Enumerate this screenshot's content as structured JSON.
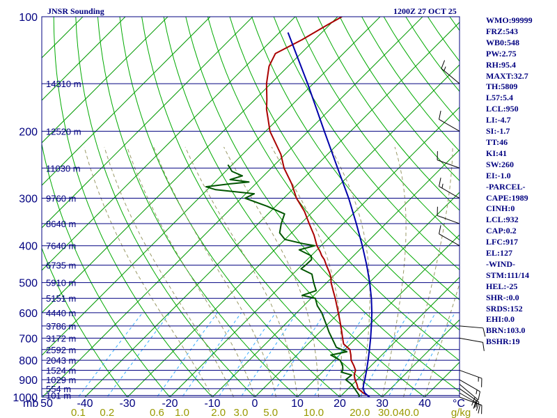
{
  "header": {
    "station": "JNSR Sounding",
    "time": "1200Z 27 OCT 25"
  },
  "indices": [
    "WMO:99999",
    "FRZ:543",
    "WB0:548",
    "PW:2.75",
    "RH:95.4",
    "MAXT:32.7",
    "TH:5809",
    "L57:5.4",
    "LCL:950",
    "LI:-4.7",
    "SI:-1.7",
    "TT:46",
    "KI:41",
    "SW:260",
    "EI:-1.0",
    "-PARCEL-",
    "CAPE:1989",
    "CINH:0",
    "LCL:932",
    "CAP:0.2",
    "LFC:917",
    "EL:127",
    "-WIND-",
    "STM:111/14",
    "HEL:-25",
    "SHR-:0.0",
    "SRDS:152",
    "EHI:0.0",
    "BRN:103.0",
    "BSHR:19"
  ],
  "colors": {
    "frame": "#000080",
    "isobar": "#000080",
    "isotherm": "#009900",
    "dry_adiabat": "#00aa00",
    "moist_adiabat": "#999966",
    "mixing_ratio": "#33aaff",
    "temperature": "#aa0000",
    "dewpoint": "#005500",
    "parcel": "#0000aa",
    "wind_barb": "#000000",
    "mixing_label": "#999900"
  },
  "chart_data": {
    "type": "line",
    "title": "JNSR Sounding",
    "subtitle": "1200Z 27 OCT 25",
    "xlabel": "°C",
    "ylabel": "mb",
    "y_scale": "log-pressure",
    "ylim": [
      1000,
      100
    ],
    "xlim": [
      -50,
      50
    ],
    "skew": "isotherms slanted 45°",
    "pressure_ticks": [
      1000,
      900,
      800,
      700,
      600,
      500,
      400,
      300,
      200,
      100
    ],
    "temperature_ticks": [
      -50,
      -40,
      -30,
      -20,
      -10,
      0,
      10,
      20,
      30,
      40
    ],
    "mixing_ratio_ticks": [
      "0.1",
      "0.2",
      "0.6",
      "1.0",
      "2.0",
      "3.0",
      "5.0",
      "10.0",
      "20.0",
      "30.0",
      "40.0"
    ],
    "mixing_ratio_unit": "g/kg",
    "height_labels": [
      {
        "p": 990,
        "label": "101 m"
      },
      {
        "p": 950,
        "label": "554 m"
      },
      {
        "p": 900,
        "label": "1029 m"
      },
      {
        "p": 850,
        "label": "1524 m"
      },
      {
        "p": 800,
        "label": "2043 m"
      },
      {
        "p": 750,
        "label": "2592 m"
      },
      {
        "p": 700,
        "label": "3172 m"
      },
      {
        "p": 650,
        "label": "3786 m"
      },
      {
        "p": 600,
        "label": "4440 m"
      },
      {
        "p": 550,
        "label": "5151 m"
      },
      {
        "p": 500,
        "label": "5910 m"
      },
      {
        "p": 450,
        "label": "6735 m"
      },
      {
        "p": 400,
        "label": "7640 m"
      },
      {
        "p": 350,
        "label": "8640 m"
      },
      {
        "p": 300,
        "label": "9760 m"
      },
      {
        "p": 250,
        "label": "11030 m"
      },
      {
        "p": 200,
        "label": "12520 m"
      },
      {
        "p": 150,
        "label": "14310 m"
      }
    ],
    "series": [
      {
        "name": "Temperature",
        "points": [
          [
            1000,
            27.0
          ],
          [
            990,
            26.2
          ],
          [
            975,
            24.5
          ],
          [
            950,
            22.3
          ],
          [
            925,
            21.0
          ],
          [
            900,
            19.5
          ],
          [
            875,
            18.2
          ],
          [
            850,
            17.4
          ],
          [
            825,
            15.8
          ],
          [
            800,
            14.0
          ],
          [
            775,
            12.7
          ],
          [
            750,
            11.2
          ],
          [
            725,
            8.4
          ],
          [
            700,
            6.8
          ],
          [
            675,
            5.2
          ],
          [
            650,
            3.5
          ],
          [
            625,
            1.7
          ],
          [
            600,
            -0.2
          ],
          [
            575,
            -2.2
          ],
          [
            550,
            -4.3
          ],
          [
            525,
            -6.6
          ],
          [
            500,
            -9.0
          ],
          [
            485,
            -10.2
          ],
          [
            470,
            -11.8
          ],
          [
            450,
            -14.2
          ],
          [
            435,
            -16.0
          ],
          [
            425,
            -17.5
          ],
          [
            415,
            -18.8
          ],
          [
            400,
            -21.0
          ],
          [
            375,
            -24.2
          ],
          [
            350,
            -28.0
          ],
          [
            325,
            -32.0
          ],
          [
            300,
            -37.0
          ],
          [
            275,
            -41.5
          ],
          [
            250,
            -47.0
          ],
          [
            230,
            -51.0
          ],
          [
            200,
            -59.0
          ],
          [
            185,
            -62.5
          ],
          [
            175,
            -65.0
          ],
          [
            165,
            -67.2
          ],
          [
            150,
            -71.0
          ],
          [
            135,
            -74.5
          ],
          [
            125,
            -76.0
          ],
          [
            115,
            -73.0
          ],
          [
            105,
            -70.5
          ],
          [
            100,
            -69.0
          ]
        ]
      },
      {
        "name": "Dewpoint",
        "points": [
          [
            1000,
            24.5
          ],
          [
            990,
            24.2
          ],
          [
            950,
            21.5
          ],
          [
            925,
            19.7
          ],
          [
            900,
            17.3
          ],
          [
            875,
            17.6
          ],
          [
            860,
            14.5
          ],
          [
            850,
            14.4
          ],
          [
            825,
            13.2
          ],
          [
            800,
            11.4
          ],
          [
            775,
            8.0
          ],
          [
            760,
            11.0
          ],
          [
            740,
            7.5
          ],
          [
            700,
            4.3
          ],
          [
            675,
            2.2
          ],
          [
            650,
            0.2
          ],
          [
            600,
            -4.1
          ],
          [
            575,
            -6.8
          ],
          [
            550,
            -9.0
          ],
          [
            540,
            -12.8
          ],
          [
            525,
            -10.6
          ],
          [
            500,
            -13.1
          ],
          [
            475,
            -15.5
          ],
          [
            460,
            -19.3
          ],
          [
            450,
            -19.1
          ],
          [
            435,
            -19.0
          ],
          [
            425,
            -20.0
          ],
          [
            410,
            -24.2
          ],
          [
            400,
            -21.5
          ],
          [
            395,
            -24.8
          ],
          [
            385,
            -30.0
          ],
          [
            370,
            -32.8
          ],
          [
            350,
            -34.6
          ],
          [
            330,
            -36.1
          ],
          [
            315,
            -42.0
          ],
          [
            300,
            -49.1
          ],
          [
            292,
            -48.0
          ],
          [
            285,
            -58.0
          ],
          [
            280,
            -61.0
          ],
          [
            275,
            -56.0
          ],
          [
            272,
            -52.0
          ],
          [
            268,
            -57.0
          ],
          [
            262,
            -55.0
          ],
          [
            255,
            -58.5
          ],
          [
            245,
            -61.0
          ]
        ]
      },
      {
        "name": "Parcel",
        "points": [
          [
            1000,
            27.0
          ],
          [
            975,
            24.9
          ],
          [
            950,
            23.5
          ],
          [
            925,
            22.6
          ],
          [
            900,
            21.8
          ],
          [
            850,
            20.0
          ],
          [
            800,
            18.0
          ],
          [
            750,
            15.8
          ],
          [
            700,
            13.4
          ],
          [
            650,
            10.7
          ],
          [
            600,
            7.7
          ],
          [
            550,
            4.2
          ],
          [
            500,
            0.1
          ],
          [
            450,
            -4.7
          ],
          [
            400,
            -10.3
          ],
          [
            350,
            -16.9
          ],
          [
            300,
            -24.7
          ],
          [
            250,
            -34.4
          ],
          [
            200,
            -46.2
          ],
          [
            150,
            -61.3
          ],
          [
            110,
            -78.0
          ]
        ]
      }
    ],
    "wind_barbs": [
      {
        "p": 1000,
        "dir": 110,
        "spd": 10
      },
      {
        "p": 975,
        "dir": 120,
        "spd": 15
      },
      {
        "p": 950,
        "dir": 125,
        "spd": 20
      },
      {
        "p": 925,
        "dir": 130,
        "spd": 20
      },
      {
        "p": 900,
        "dir": 120,
        "spd": 15
      },
      {
        "p": 850,
        "dir": 110,
        "spd": 15
      },
      {
        "p": 700,
        "dir": 100,
        "spd": 10
      },
      {
        "p": 650,
        "dir": 95,
        "spd": 10
      },
      {
        "p": 400,
        "dir": 300,
        "spd": 10
      },
      {
        "p": 350,
        "dir": 290,
        "spd": 10
      },
      {
        "p": 300,
        "dir": 300,
        "spd": 15
      },
      {
        "p": 250,
        "dir": 290,
        "spd": 10
      },
      {
        "p": 200,
        "dir": 300,
        "spd": 10
      },
      {
        "p": 150,
        "dir": 310,
        "spd": 15
      }
    ]
  }
}
